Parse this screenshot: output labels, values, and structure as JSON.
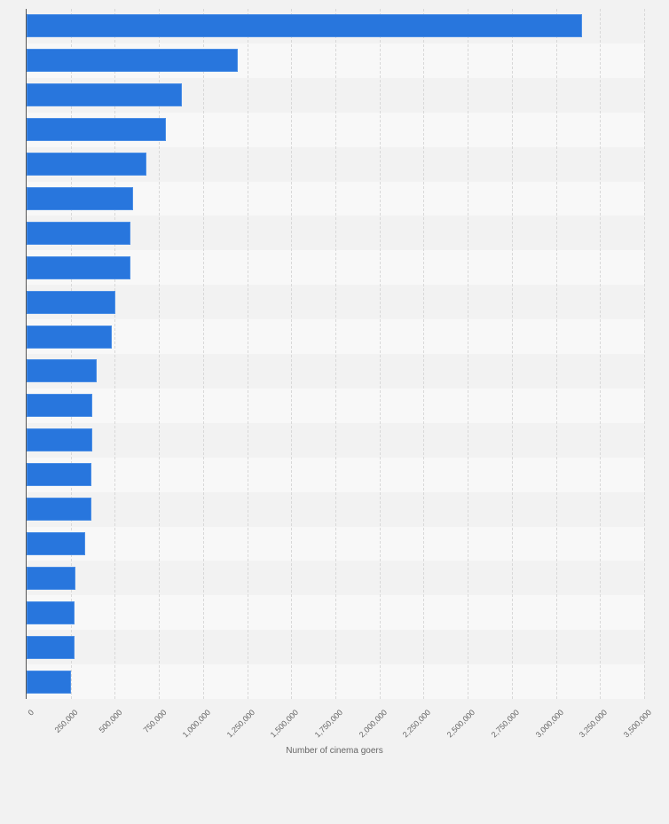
{
  "chart_data": {
    "type": "bar",
    "orientation": "horizontal",
    "title": "",
    "xlabel": "Number of cinema goers",
    "ylabel": "",
    "xlim": [
      0,
      3500000
    ],
    "x_ticks": [
      "0",
      "250,000",
      "500,000",
      "750,000",
      "1,000,000",
      "1,250,000",
      "1,500,000",
      "1,750,000",
      "2,000,000",
      "2,250,000",
      "2,500,000",
      "2,750,000",
      "3,000,000",
      "3,250,000",
      "3,500,000"
    ],
    "categories": [
      "",
      "",
      "",
      "",
      "",
      "",
      "",
      "",
      "",
      "",
      "",
      "",
      "",
      "",
      "",
      "",
      "",
      "",
      "",
      ""
    ],
    "values": [
      3148000,
      1199000,
      881000,
      790000,
      679000,
      604000,
      589000,
      589000,
      501000,
      483000,
      396000,
      372000,
      372000,
      367000,
      367000,
      332000,
      276000,
      270000,
      270000,
      250000
    ],
    "grid": true,
    "legend": null,
    "bar_color": "#2876dd"
  }
}
